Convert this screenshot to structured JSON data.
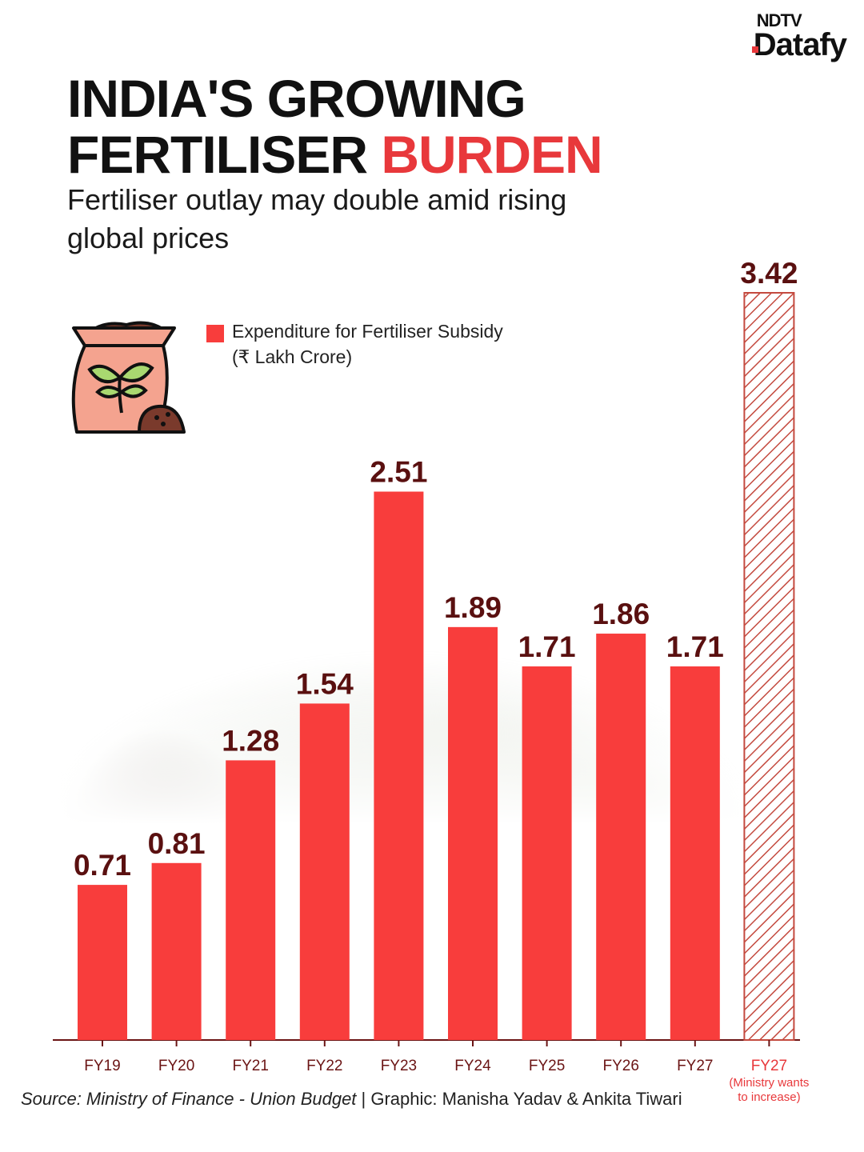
{
  "brand": {
    "line1": "NDTV",
    "line2": "Datafy"
  },
  "header": {
    "title_line1": "INDIA'S GROWING",
    "title_line2_part1": "FERTILISER ",
    "title_line2_part2": "BURDEN",
    "subtitle": "Fertiliser outlay may double amid rising global prices"
  },
  "legend": {
    "label": "Expenditure for Fertiliser Subsidy",
    "unit": "(₹ Lakh Crore)"
  },
  "colors": {
    "bar": "#f83d3c",
    "projected_hatch": "#c44a3f",
    "value_label": "#5a1010",
    "axis_label": "#6b1414",
    "note_label": "#e8383b"
  },
  "chart_data": {
    "type": "bar",
    "categories": [
      "FY19",
      "FY20",
      "FY21",
      "FY22",
      "FY23",
      "FY24",
      "FY25",
      "FY26",
      "FY27",
      "FY27"
    ],
    "values": [
      0.71,
      0.81,
      1.28,
      1.54,
      2.51,
      1.89,
      1.71,
      1.86,
      1.71,
      3.42
    ],
    "value_labels": [
      "0.71",
      "0.81",
      "1.28",
      "1.54",
      "2.51",
      "1.89",
      "1.71",
      "1.86",
      "1.71",
      "3.42"
    ],
    "projected_index": 9,
    "projected_note": "(Ministry wants to increase)",
    "ylim": [
      0,
      3.42
    ],
    "grid": false
  },
  "footer": {
    "source": "Source: Ministry of Finance - Union Budget",
    "credit": " | Graphic: Manisha Yadav & Ankita Tiwari"
  }
}
